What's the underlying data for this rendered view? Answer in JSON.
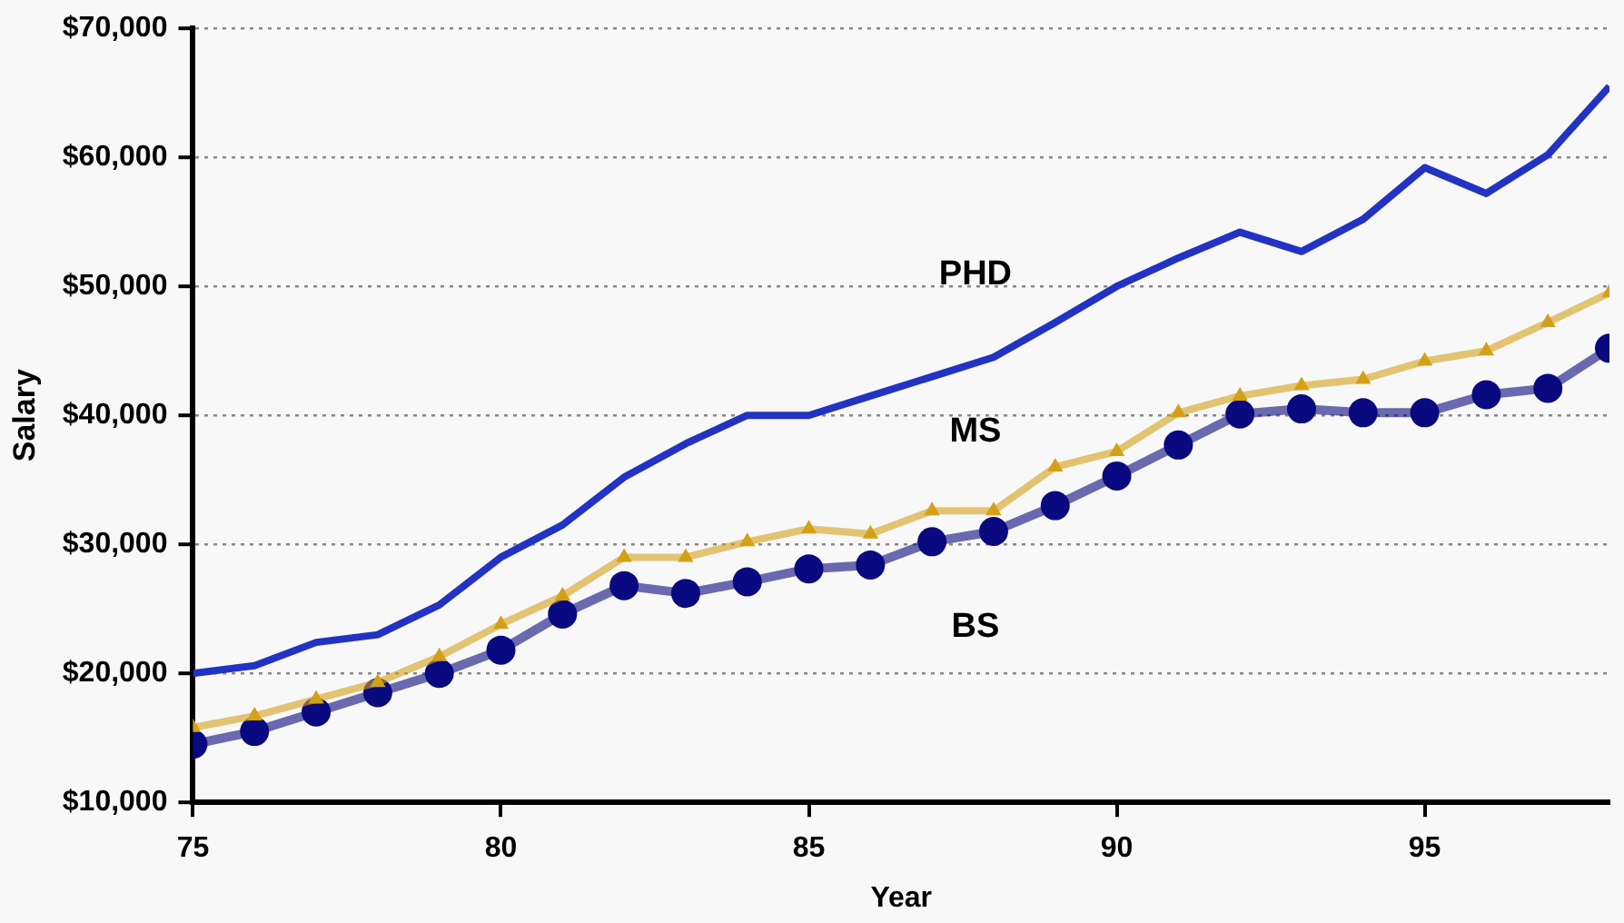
{
  "chart_data": {
    "type": "line",
    "xlabel": "Year",
    "ylabel": "Salary",
    "x": [
      75,
      76,
      77,
      78,
      79,
      80,
      81,
      82,
      83,
      84,
      85,
      86,
      87,
      88,
      89,
      90,
      91,
      92,
      93,
      94,
      95,
      96,
      97,
      98
    ],
    "series": [
      {
        "name": "PHD",
        "color": "#2233c4",
        "marker": "none",
        "values": [
          20000,
          20600,
          22400,
          23000,
          25300,
          29000,
          31500,
          35200,
          37800,
          40000,
          40000,
          41500,
          43000,
          44500,
          47200,
          50000,
          52200,
          54200,
          52700,
          55200,
          59200,
          57200,
          60200,
          65500
        ]
      },
      {
        "name": "MS",
        "color": "#d4a017",
        "marker": "triangle",
        "values": [
          15800,
          16700,
          18000,
          19300,
          21300,
          23800,
          26000,
          29000,
          29000,
          30200,
          31200,
          30800,
          32600,
          32600,
          36000,
          37200,
          40200,
          41500,
          42300,
          42800,
          44200,
          45000,
          47200,
          49500
        ]
      },
      {
        "name": "BS",
        "color": "#0a0a80",
        "marker": "circle",
        "values": [
          14500,
          15500,
          17000,
          18500,
          20000,
          21800,
          24600,
          26800,
          26200,
          27100,
          28100,
          28400,
          30200,
          31000,
          33000,
          35300,
          37700,
          40100,
          40500,
          40200,
          40200,
          41600,
          42100,
          45200
        ]
      }
    ],
    "xlim": [
      75,
      98
    ],
    "xticks": [
      75,
      80,
      85,
      90,
      95
    ],
    "ylim": [
      10000,
      70000
    ],
    "yticks": [
      {
        "value": 10000,
        "label": "$10,000"
      },
      {
        "value": 20000,
        "label": "$20,000"
      },
      {
        "value": 30000,
        "label": "$30,000"
      },
      {
        "value": 40000,
        "label": "$40,000"
      },
      {
        "value": 50000,
        "label": "$50,000"
      },
      {
        "value": 60000,
        "label": "$60,000"
      },
      {
        "value": 70000,
        "label": "$70,000"
      }
    ],
    "grid": "y",
    "legend": false
  }
}
